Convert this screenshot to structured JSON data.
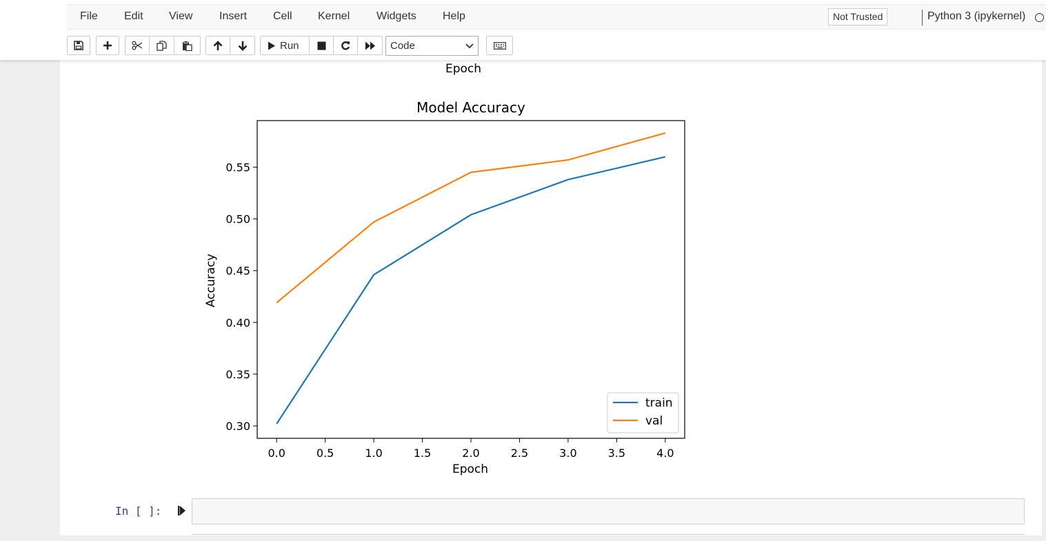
{
  "menu": {
    "items": [
      {
        "label": "File"
      },
      {
        "label": "Edit"
      },
      {
        "label": "View"
      },
      {
        "label": "Insert"
      },
      {
        "label": "Cell"
      },
      {
        "label": "Kernel"
      },
      {
        "label": "Widgets"
      },
      {
        "label": "Help"
      }
    ],
    "trusted": "Not Trusted",
    "kernel": "Python 3 (ipykernel)"
  },
  "toolbar": {
    "run_label": "Run",
    "cell_type": "Code",
    "icons": [
      "save-icon",
      "plus-icon",
      "scissors-icon",
      "copy-icon",
      "paste-icon",
      "arrow-up-icon",
      "arrow-down-icon",
      "play-icon",
      "stop-icon",
      "restart-icon",
      "fast-forward-icon",
      "keyboard-icon"
    ]
  },
  "output": {
    "prev_chart_xlabel": "Epoch"
  },
  "chart_data": {
    "type": "line",
    "title": "Model Accuracy",
    "xlabel": "Epoch",
    "ylabel": "Accuracy",
    "x": [
      0,
      1,
      2,
      3,
      4
    ],
    "series": [
      {
        "name": "train",
        "color": "#1f77b4",
        "values": [
          0.302,
          0.446,
          0.504,
          0.538,
          0.56
        ]
      },
      {
        "name": "val",
        "color": "#ff7f0e",
        "values": [
          0.419,
          0.497,
          0.545,
          0.557,
          0.583
        ]
      }
    ],
    "xlim": [
      -0.2,
      4.2
    ],
    "ylim": [
      0.288,
      0.595
    ],
    "xticks": [
      "0.0",
      "0.5",
      "1.0",
      "1.5",
      "2.0",
      "2.5",
      "3.0",
      "3.5",
      "4.0"
    ],
    "yticks": [
      "0.30",
      "0.35",
      "0.40",
      "0.45",
      "0.50",
      "0.55"
    ],
    "legend": "lower-right",
    "grid": false
  },
  "next_cell": {
    "prompt": "In [ ]:",
    "value": ""
  }
}
